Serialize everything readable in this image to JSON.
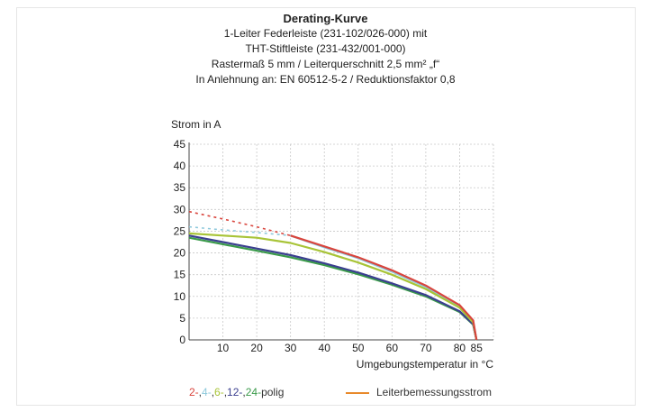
{
  "chart_data": {
    "type": "line",
    "title": "Derating-Kurve",
    "subtitle_lines": [
      "1-Leiter Federleiste (231-102/026-000) mit",
      "THT-Stiftleiste (231-432/001-000)",
      "Rastermaß 5 mm / Leiterquerschnitt 2,5 mm² „f“",
      "In Anlehnung an: EN 60512-5-2 / Reduktionsfaktor 0,8"
    ],
    "ylabel": "Strom in A",
    "xlabel": "Umgebungstemperatur in °C",
    "xlim": [
      0,
      90
    ],
    "ylim": [
      0,
      45
    ],
    "x_ticks": [
      10,
      20,
      30,
      40,
      50,
      60,
      70,
      80,
      85
    ],
    "y_ticks": [
      0,
      5,
      10,
      15,
      20,
      25,
      30,
      35,
      40,
      45
    ],
    "grid": true,
    "series": [
      {
        "name": "2-",
        "color": "#d9453d",
        "dashed": {
          "x": [
            0,
            10,
            20,
            30
          ],
          "y": [
            29.5,
            27.8,
            26,
            24
          ]
        },
        "solid": {
          "x": [
            30,
            40,
            50,
            60,
            70,
            80,
            84,
            85
          ],
          "y": [
            24,
            21.5,
            19,
            16,
            12.5,
            8,
            4.5,
            0
          ]
        }
      },
      {
        "name": "4-",
        "color": "#8ec9dc",
        "dashed": {
          "x": [
            0,
            10,
            20,
            30
          ],
          "y": [
            26,
            25.3,
            24.7,
            24
          ]
        },
        "solid": {
          "x": [
            30,
            40,
            50,
            60,
            70,
            80,
            84,
            85
          ],
          "y": [
            24,
            21.3,
            18.8,
            15.7,
            12.2,
            7.7,
            4.2,
            0
          ]
        }
      },
      {
        "name": "6-",
        "color": "#a8c437",
        "solid": {
          "x": [
            0,
            10,
            20,
            30,
            40,
            50,
            60,
            70,
            80,
            84,
            85
          ],
          "y": [
            24.5,
            24,
            23.5,
            22.3,
            20.2,
            17.8,
            15,
            11.7,
            7.4,
            4,
            0
          ]
        }
      },
      {
        "name": "12-",
        "color": "#3b3f8f",
        "solid": {
          "x": [
            0,
            10,
            20,
            30,
            40,
            50,
            60,
            70,
            80,
            84,
            85
          ],
          "y": [
            24,
            22.5,
            21,
            19.5,
            17.6,
            15.5,
            13,
            10.3,
            6.6,
            3.6,
            0
          ]
        }
      },
      {
        "name": "24-",
        "color": "#3a9a4a",
        "solid": {
          "x": [
            0,
            10,
            20,
            30,
            40,
            50,
            60,
            70,
            80,
            84,
            85
          ],
          "y": [
            23.5,
            22,
            20.5,
            19,
            17.2,
            15.1,
            12.7,
            10,
            6.4,
            3.5,
            0
          ]
        }
      }
    ],
    "rated_current_color": "#e8892a"
  },
  "legend": {
    "items": [
      {
        "text": "2-",
        "color": "#d9453d"
      },
      {
        "text": ", ",
        "color": "#333333"
      },
      {
        "text": "4-",
        "color": "#8ec9dc"
      },
      {
        "text": ", ",
        "color": "#333333"
      },
      {
        "text": "6-",
        "color": "#a8c437"
      },
      {
        "text": ", ",
        "color": "#333333"
      },
      {
        "text": "12-",
        "color": "#3b3f8f"
      },
      {
        "text": ", ",
        "color": "#333333"
      },
      {
        "text": "24-",
        "color": "#3a9a4a"
      },
      {
        "text": "polig",
        "color": "#333333"
      }
    ],
    "rated_label": "Leiterbemessungsstrom"
  }
}
